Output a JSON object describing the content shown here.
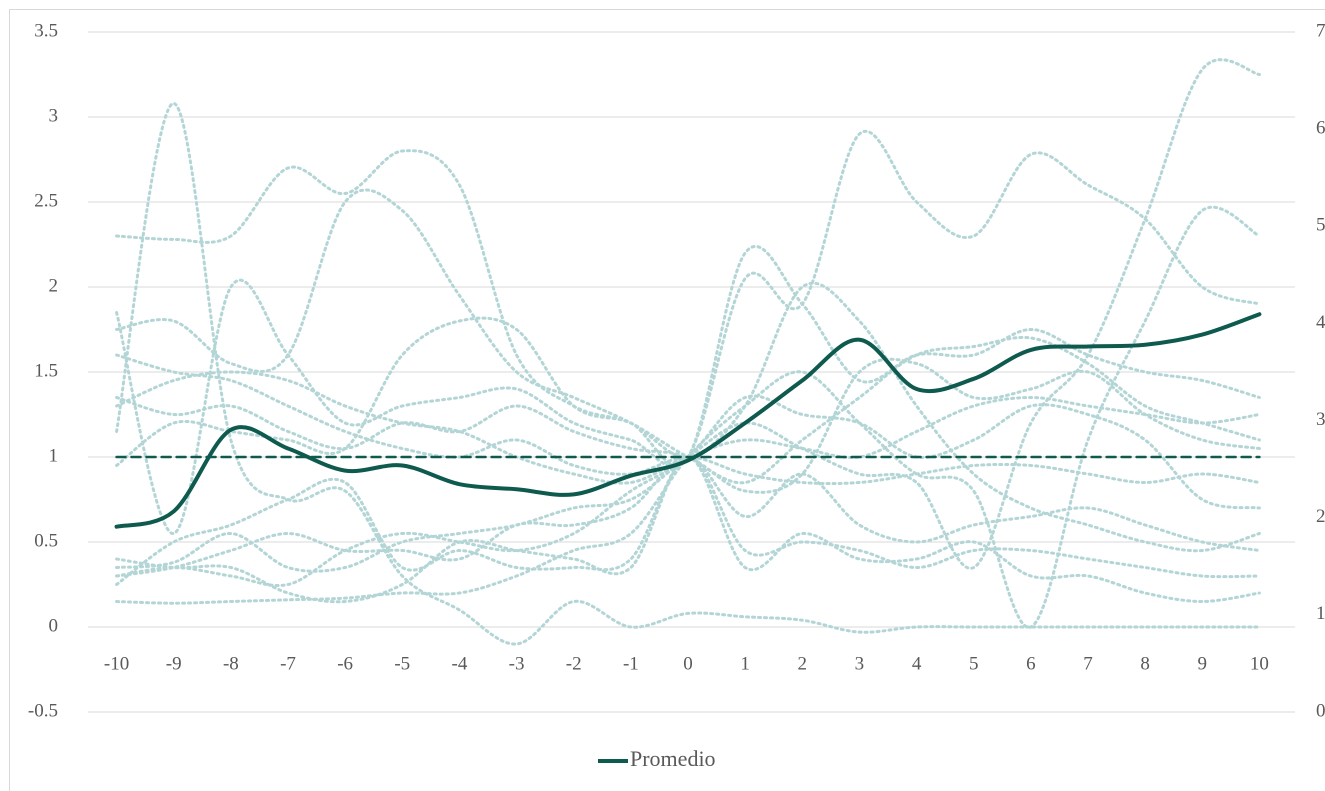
{
  "chart_data": {
    "type": "line",
    "x": [
      -10,
      -9,
      -8,
      -7,
      -6,
      -5,
      -4,
      -3,
      -2,
      -1,
      0,
      1,
      2,
      3,
      4,
      5,
      6,
      7,
      8,
      9,
      10
    ],
    "xlim": [
      -10.5,
      10.5
    ],
    "xticks": [
      -10,
      -9,
      -8,
      -7,
      -6,
      -5,
      -4,
      -3,
      -2,
      -1,
      0,
      1,
      2,
      3,
      4,
      5,
      6,
      7,
      8,
      9,
      10
    ],
    "ylim": [
      -0.5,
      3.5
    ],
    "yticks": [
      -0.5,
      0,
      0.5,
      1,
      1.5,
      2,
      2.5,
      3,
      3.5
    ],
    "y2lim": [
      0,
      7
    ],
    "y2ticks": [
      0,
      1,
      2,
      3,
      4,
      5,
      6,
      7
    ],
    "grid": true,
    "legend": "bottom",
    "series": [
      {
        "color": "#b3d5d6",
        "style": "dotted",
        "values": [
          2.3,
          2.28,
          2.3,
          2.7,
          2.55,
          2.8,
          2.6,
          1.6,
          1.3,
          1.2,
          1,
          2.2,
          1.9,
          1.45,
          1.6,
          1.6,
          1.75,
          1.6,
          1.5,
          1.45,
          1.35
        ]
      },
      {
        "color": "#b3d5d6",
        "style": "dotted",
        "values": [
          1.15,
          3.08,
          1.1,
          0.75,
          0.8,
          0.3,
          0.1,
          -0.1,
          0.15,
          0,
          0.08,
          0.06,
          0.04,
          -0.03,
          0,
          0,
          0,
          0,
          0,
          0,
          0
        ]
      },
      {
        "color": "#b3d5d6",
        "style": "dotted",
        "values": [
          1.85,
          0.55,
          2.0,
          1.6,
          1.2,
          1.3,
          1.35,
          1.4,
          1.2,
          1.1,
          1,
          2.05,
          1.9,
          2.9,
          2.5,
          2.3,
          2.78,
          2.6,
          2.4,
          2.0,
          1.9
        ]
      },
      {
        "color": "#b3d5d6",
        "style": "dotted",
        "values": [
          1.75,
          1.8,
          1.55,
          1.6,
          2.5,
          2.45,
          1.95,
          1.5,
          1.35,
          1.2,
          1,
          0.85,
          1.1,
          1.35,
          1.6,
          1.65,
          1.7,
          1.55,
          1.3,
          1.2,
          1.1
        ]
      },
      {
        "color": "#b3d5d6",
        "style": "dotted",
        "values": [
          1.35,
          1.25,
          1.3,
          1.15,
          1.05,
          1.2,
          1.15,
          1.3,
          1.15,
          1.05,
          1,
          0.8,
          0.9,
          1.5,
          1.55,
          1.35,
          1.4,
          1.5,
          1.25,
          1.1,
          1.05
        ]
      },
      {
        "color": "#b3d5d6",
        "style": "dotted",
        "values": [
          0.95,
          1.2,
          1.15,
          1.1,
          1.05,
          1.6,
          1.8,
          1.75,
          1.3,
          1.2,
          1,
          1.3,
          2.0,
          1.8,
          1.3,
          0.9,
          0.7,
          0.6,
          0.5,
          0.45,
          0.55
        ]
      },
      {
        "color": "#b3d5d6",
        "style": "dotted",
        "values": [
          0.25,
          0.5,
          0.6,
          0.75,
          0.85,
          0.35,
          0.45,
          0.35,
          0.35,
          0.4,
          1,
          0.45,
          0.5,
          0.45,
          0.35,
          0.45,
          0.45,
          0.4,
          0.35,
          0.3,
          0.3
        ]
      },
      {
        "color": "#b3d5d6",
        "style": "dotted",
        "values": [
          0.4,
          0.35,
          0.35,
          0.2,
          0.15,
          0.25,
          0.5,
          0.45,
          0.4,
          0.35,
          1,
          0.35,
          0.55,
          0.4,
          0.4,
          0.5,
          0.3,
          0.3,
          0.2,
          0.15,
          0.2
        ]
      },
      {
        "color": "#b3d5d6",
        "style": "dotted",
        "values": [
          0.15,
          0.14,
          0.15,
          0.16,
          0.17,
          0.2,
          0.2,
          0.3,
          0.45,
          0.55,
          1,
          1.3,
          1.5,
          1.2,
          0.9,
          0.8,
          0.0,
          1.1,
          1.8,
          2.45,
          2.3
        ]
      },
      {
        "color": "#b3d5d6",
        "style": "dotted",
        "values": [
          0.35,
          0.38,
          0.55,
          0.35,
          0.35,
          0.5,
          0.55,
          0.6,
          0.7,
          0.75,
          1,
          1.2,
          1.05,
          0.9,
          0.85,
          0.35,
          1.2,
          1.6,
          2.4,
          3.28,
          3.25
        ]
      },
      {
        "color": "#b3d5d6",
        "style": "dotted",
        "values": [
          0.3,
          0.35,
          0.3,
          0.25,
          0.45,
          0.55,
          0.5,
          0.45,
          0.55,
          0.8,
          1,
          1.35,
          1.25,
          1.2,
          1.0,
          1.1,
          1.3,
          1.25,
          1.1,
          0.75,
          0.7
        ]
      },
      {
        "color": "#b3d5d6",
        "style": "dotted",
        "values": [
          1.6,
          1.5,
          1.45,
          1.3,
          1.15,
          1.05,
          1.0,
          1.1,
          0.95,
          0.9,
          1,
          0.9,
          0.85,
          0.85,
          0.9,
          0.95,
          0.95,
          0.9,
          0.85,
          0.9,
          0.85
        ]
      },
      {
        "color": "#b3d5d6",
        "style": "dotted",
        "values": [
          1.3,
          1.45,
          1.5,
          1.45,
          1.3,
          1.2,
          1.15,
          1.0,
          0.9,
          0.85,
          1,
          1.1,
          1.05,
          1.0,
          1.15,
          1.3,
          1.35,
          1.3,
          1.25,
          1.2,
          1.25
        ]
      },
      {
        "color": "#b3d5d6",
        "style": "dotted",
        "values": [
          0.3,
          0.35,
          0.45,
          0.55,
          0.45,
          0.45,
          0.4,
          0.6,
          0.6,
          0.7,
          1,
          0.65,
          0.9,
          0.6,
          0.5,
          0.6,
          0.65,
          0.7,
          0.6,
          0.5,
          0.45
        ]
      },
      {
        "color": "#0f5a4e",
        "style": "dashed",
        "values": [
          1,
          1,
          1,
          1,
          1,
          1,
          1,
          1,
          1,
          1,
          1,
          1,
          1,
          1,
          1,
          1,
          1,
          1,
          1,
          1,
          1
        ]
      },
      {
        "name": "Promedio",
        "color": "#0f5a4e",
        "style": "solid",
        "values": [
          0.59,
          0.68,
          1.16,
          1.05,
          0.92,
          0.95,
          0.84,
          0.81,
          0.78,
          0.89,
          0.98,
          1.2,
          1.45,
          1.69,
          1.4,
          1.46,
          1.63,
          1.65,
          1.66,
          1.72,
          1.84
        ]
      }
    ]
  }
}
